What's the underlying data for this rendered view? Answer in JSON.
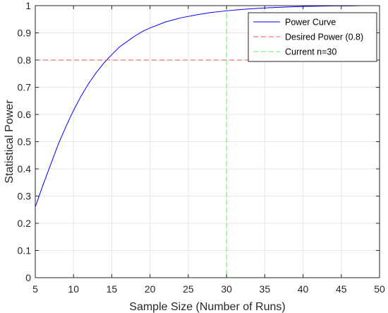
{
  "chart_data": {
    "type": "line",
    "title": "",
    "xlabel": "Sample Size (Number of Runs)",
    "ylabel": "Statistical Power",
    "xlim": [
      5,
      50
    ],
    "ylim": [
      0,
      1
    ],
    "x_ticks": [
      "5",
      "10",
      "15",
      "20",
      "25",
      "30",
      "35",
      "40",
      "45",
      "50"
    ],
    "y_ticks": [
      "0",
      "0.1",
      "0.2",
      "0.3",
      "0.4",
      "0.5",
      "0.6",
      "0.7",
      "0.8",
      "0.9",
      "1"
    ],
    "grid": true,
    "legend_position": "top-right",
    "series": [
      {
        "name": "Power Curve",
        "color": "#0000ff",
        "style": "solid",
        "x": [
          5,
          6,
          7,
          8,
          9,
          10,
          11,
          12,
          13,
          14,
          15,
          16,
          17,
          18,
          19,
          20,
          22,
          24,
          26,
          28,
          30,
          32,
          34,
          36,
          38,
          40,
          42,
          44,
          46,
          48,
          50
        ],
        "y": [
          0.26,
          0.34,
          0.415,
          0.49,
          0.555,
          0.615,
          0.668,
          0.715,
          0.755,
          0.79,
          0.82,
          0.848,
          0.868,
          0.888,
          0.905,
          0.918,
          0.94,
          0.955,
          0.966,
          0.975,
          0.981,
          0.986,
          0.99,
          0.993,
          0.995,
          0.997,
          0.998,
          0.999,
          0.999,
          1.0,
          1.0
        ]
      },
      {
        "name": "Desired Power (0.8)",
        "color": "#ff4d4d",
        "style": "dashed",
        "orientation": "horizontal",
        "value": 0.8
      },
      {
        "name": "Current n=30",
        "color": "#4dff4d",
        "style": "dashed",
        "orientation": "vertical",
        "value": 30
      }
    ]
  }
}
